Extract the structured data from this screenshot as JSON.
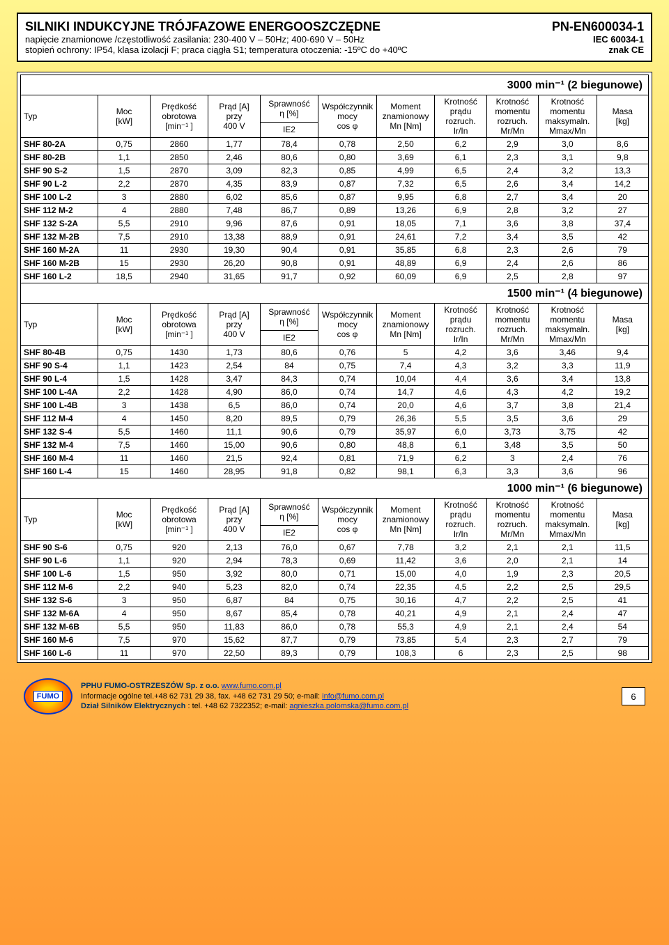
{
  "header": {
    "title": "SILNIKI INDUKCYJNE TRÓJFAZOWE ENERGOOSZCZĘDNE",
    "spec": "PN-EN600034-1",
    "sub1_left": "napięcie znamionowe /częstotliwość zasilania: 230-400 V – 50Hz; 400-690 V – 50Hz",
    "sub1_right": "IEC 60034-1",
    "sub2_left": "stopień ochrony: IP54, klasa izolacji F; praca ciągła S1; temperatura otoczenia: -15ºC do +40ºC",
    "sub2_right": "znak CE"
  },
  "columns": {
    "typ": "Typ",
    "moc": "Moc [kW]",
    "predkosc": "Prędkość obrotowa [min⁻¹ ]",
    "prad": "Prąd [A] przy 400 V",
    "sprawnosc": "Sprawność η [%]",
    "ie2": "IE2",
    "wspolczynnik": "Współczynnik mocy cos φ",
    "moment": "Moment znamionowy Mn [Nm]",
    "krotnosc_pradu": "Krotność prądu rozruch. Ir/In",
    "krotnosc_momentu_r": "Krotność momentu rozruch. Mr/Mn",
    "krotnosc_momentu_m": "Krotność momentu maksymaln. Mmax/Mn",
    "masa": "Masa [kg]"
  },
  "sections": [
    {
      "title": "3000 min⁻¹ (2  biegunowe)",
      "rows": [
        [
          "SHF 80-2A",
          "0,75",
          "2860",
          "1,77",
          "78,4",
          "0,78",
          "2,50",
          "6,2",
          "2,9",
          "3,0",
          "8,6"
        ],
        [
          "SHF 80-2B",
          "1,1",
          "2850",
          "2,46",
          "80,6",
          "0,80",
          "3,69",
          "6,1",
          "2,3",
          "3,1",
          "9,8"
        ],
        [
          "SHF 90 S-2",
          "1,5",
          "2870",
          "3,09",
          "82,3",
          "0,85",
          "4,99",
          "6,5",
          "2,4",
          "3,2",
          "13,3"
        ],
        [
          "SHF 90 L-2",
          "2,2",
          "2870",
          "4,35",
          "83,9",
          "0,87",
          "7,32",
          "6,5",
          "2,6",
          "3,4",
          "14,2"
        ],
        [
          "SHF 100 L-2",
          "3",
          "2880",
          "6,02",
          "85,6",
          "0,87",
          "9,95",
          "6,8",
          "2,7",
          "3,4",
          "20"
        ],
        [
          "SHF 112 M-2",
          "4",
          "2880",
          "7,48",
          "86,7",
          "0,89",
          "13,26",
          "6,9",
          "2,8",
          "3,2",
          "27"
        ],
        [
          "SHF 132 S-2A",
          "5,5",
          "2910",
          "9,96",
          "87,6",
          "0,91",
          "18,05",
          "7,1",
          "3,6",
          "3,8",
          "37,4"
        ],
        [
          "SHF 132 M-2B",
          "7,5",
          "2910",
          "13,38",
          "88,9",
          "0,91",
          "24,61",
          "7,2",
          "3,4",
          "3,5",
          "42"
        ],
        [
          "SHF 160 M-2A",
          "11",
          "2930",
          "19,30",
          "90,4",
          "0,91",
          "35,85",
          "6,8",
          "2,3",
          "2,6",
          "79"
        ],
        [
          "SHF 160 M-2B",
          "15",
          "2930",
          "26,20",
          "90,8",
          "0,91",
          "48,89",
          "6,9",
          "2,4",
          "2,6",
          "86"
        ],
        [
          "SHF 160 L-2",
          "18,5",
          "2940",
          "31,65",
          "91,7",
          "0,92",
          "60,09",
          "6,9",
          "2,5",
          "2,8",
          "97"
        ]
      ]
    },
    {
      "title": "1500 min⁻¹ (4 biegunowe)",
      "rows": [
        [
          "SHF 80-4B",
          "0,75",
          "1430",
          "1,73",
          "80,6",
          "0,76",
          "5",
          "4,2",
          "3,6",
          "3,46",
          "9,4"
        ],
        [
          "SHF 90 S-4",
          "1,1",
          "1423",
          "2,54",
          "84",
          "0,75",
          "7,4",
          "4,3",
          "3,2",
          "3,3",
          "11,9"
        ],
        [
          "SHF 90 L-4",
          "1,5",
          "1428",
          "3,47",
          "84,3",
          "0,74",
          "10,04",
          "4,4",
          "3,6",
          "3,4",
          "13,8"
        ],
        [
          "SHF 100 L-4A",
          "2,2",
          "1428",
          "4,90",
          "86,0",
          "0,74",
          "14,7",
          "4,6",
          "4,3",
          "4,2",
          "19,2"
        ],
        [
          "SHF 100 L-4B",
          "3",
          "1438",
          "6,5",
          "86,0",
          "0,74",
          "20,0",
          "4,6",
          "3,7",
          "3,8",
          "21,4"
        ],
        [
          "SHF 112 M-4",
          "4",
          "1450",
          "8,20",
          "89,5",
          "0,79",
          "26,36",
          "5,5",
          "3,5",
          "3,6",
          "29"
        ],
        [
          "SHF 132 S-4",
          "5,5",
          "1460",
          "11,1",
          "90,6",
          "0,79",
          "35,97",
          "6,0",
          "3,73",
          "3,75",
          "42"
        ],
        [
          "SHF 132 M-4",
          "7,5",
          "1460",
          "15,00",
          "90,6",
          "0,80",
          "48,8",
          "6,1",
          "3,48",
          "3,5",
          "50"
        ],
        [
          "SHF 160 M-4",
          "11",
          "1460",
          "21,5",
          "92,4",
          "0,81",
          "71,9",
          "6,2",
          "3",
          "2,4",
          "76"
        ],
        [
          "SHF 160 L-4",
          "15",
          "1460",
          "28,95",
          "91,8",
          "0,82",
          "98,1",
          "6,3",
          "3,3",
          "3,6",
          "96"
        ]
      ]
    },
    {
      "title": "1000 min⁻¹ (6  biegunowe)",
      "rows": [
        [
          "SHF 90 S-6",
          "0,75",
          "920",
          "2,13",
          "76,0",
          "0,67",
          "7,78",
          "3,2",
          "2,1",
          "2,1",
          "11,5"
        ],
        [
          "SHF 90 L-6",
          "1,1",
          "920",
          "2,94",
          "78,3",
          "0,69",
          "11,42",
          "3,6",
          "2,0",
          "2,1",
          "14"
        ],
        [
          "SHF 100 L-6",
          "1,5",
          "950",
          "3,92",
          "80,0",
          "0,71",
          "15,00",
          "4,0",
          "1,9",
          "2,3",
          "20,5"
        ],
        [
          "SHF 112 M-6",
          "2,2",
          "940",
          "5,23",
          "82,0",
          "0,74",
          "22,35",
          "4,5",
          "2,2",
          "2,5",
          "29,5"
        ],
        [
          "SHF 132 S-6",
          "3",
          "950",
          "6,87",
          "84",
          "0,75",
          "30,16",
          "4,7",
          "2,2",
          "2,5",
          "41"
        ],
        [
          "SHF 132 M-6A",
          "4",
          "950",
          "8,67",
          "85,4",
          "0,78",
          "40,21",
          "4,9",
          "2,1",
          "2,4",
          "47"
        ],
        [
          "SHF 132 M-6B",
          "5,5",
          "950",
          "11,83",
          "86,0",
          "0,78",
          "55,3",
          "4,9",
          "2,1",
          "2,4",
          "54"
        ],
        [
          "SHF 160 M-6",
          "7,5",
          "970",
          "15,62",
          "87,7",
          "0,79",
          "73,85",
          "5,4",
          "2,3",
          "2,7",
          "79"
        ],
        [
          "SHF 160 L-6",
          "11",
          "970",
          "22,50",
          "89,3",
          "0,79",
          "108,3",
          "6",
          "2,3",
          "2,5",
          "98"
        ]
      ]
    }
  ],
  "footer": {
    "logo": "FUMO",
    "company": "PPHU FUMO-OSTRZESZÓW Sp. z o.o.  ",
    "url": "www.fumo.com.pl",
    "line2a": "Informacje ogólne tel.+48 62 731 29 38, fax. +48 62 731 29 50; e-mail: ",
    "email1": "info@fumo.com.pl",
    "line3a": "Dział Silników Elektrycznych",
    "line3b": ": tel. +48 62 7322352;  e-mail: ",
    "email2": "agnieszka.polomska@fumo.com.pl",
    "page": "6"
  }
}
